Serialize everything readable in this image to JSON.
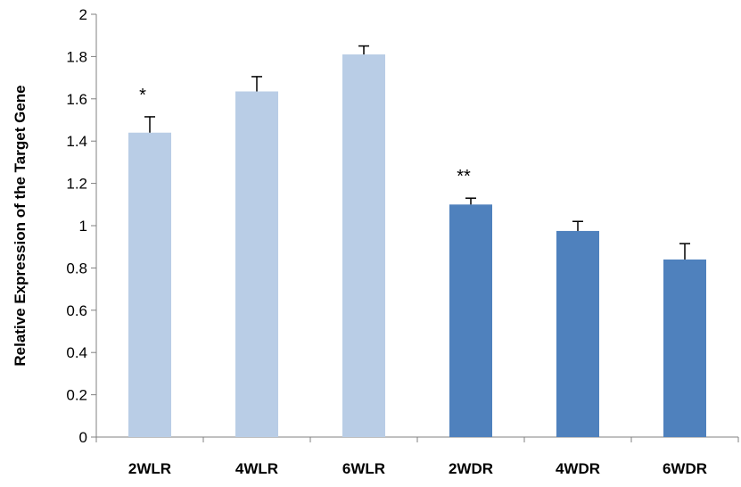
{
  "chart_data": {
    "type": "bar",
    "title": "",
    "xlabel": "",
    "ylabel": "Relative Expression of the Target Gene",
    "ylim": [
      0,
      2
    ],
    "ytick_step": 0.2,
    "y_ticks": [
      "0",
      "0.2",
      "0.4",
      "0.6",
      "0.8",
      "1",
      "1.2",
      "1.4",
      "1.6",
      "1.8",
      "2"
    ],
    "grid": false,
    "legend": "none",
    "categories": [
      "2WLR",
      "4WLR",
      "6WLR",
      "2WDR",
      "4WDR",
      "6WDR"
    ],
    "values": [
      1.44,
      1.635,
      1.81,
      1.1,
      0.975,
      0.84
    ],
    "errors": [
      0.075,
      0.07,
      0.04,
      0.03,
      0.045,
      0.075
    ],
    "annotations": [
      "*",
      "",
      "",
      "**",
      "",
      ""
    ],
    "colors": [
      "#b9cde6",
      "#b9cde6",
      "#b9cde6",
      "#4f81bd",
      "#4f81bd",
      "#4f81bd"
    ],
    "error_color": "#000000",
    "axis_color": "#808080"
  }
}
